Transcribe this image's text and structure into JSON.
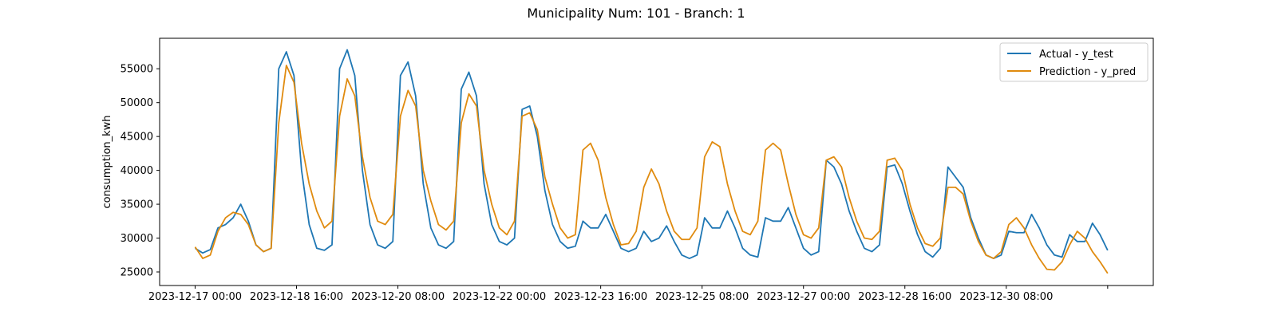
{
  "chart_data": {
    "type": "line",
    "title": "Municipality Num: 101 - Branch: 1",
    "xlabel": "",
    "ylabel": "consumption_kwh",
    "x_type": "datetime",
    "xlim": [
      "2023-12-16 10:00",
      "2024-01-01 18:00"
    ],
    "ylim": [
      23000,
      59500
    ],
    "yticks": [
      25000,
      30000,
      35000,
      40000,
      45000,
      50000,
      55000
    ],
    "xticks": [
      "2023-12-17 00:00",
      "2023-12-18 16:00",
      "2023-12-20 08:00",
      "2023-12-22 00:00",
      "2023-12-23 16:00",
      "2023-12-25 08:00",
      "2023-12-27 00:00",
      "2023-12-28 16:00",
      "2023-12-30 08:00",
      "2024-01-01 00:00"
    ],
    "xtick_labels": [
      "2023-12-17 00:00",
      "2023-12-18 16:00",
      "2023-12-20 08:00",
      "2023-12-22 00:00",
      "2023-12-23 16:00",
      "2023-12-25 08:00",
      "2023-12-27 00:00",
      "2023-12-28 16:00",
      "2023-12-30 08:00",
      ""
    ],
    "grid": false,
    "legend_position": "top-right",
    "series": [
      {
        "name": "Actual - y_test",
        "color": "#1f77b4",
        "points": [
          [
            "2023-12-17 00:00",
            28500
          ],
          [
            "2023-12-17 03:00",
            27800
          ],
          [
            "2023-12-17 06:00",
            28300
          ],
          [
            "2023-12-17 09:00",
            31500
          ],
          [
            "2023-12-17 12:00",
            32000
          ],
          [
            "2023-12-17 15:00",
            33000
          ],
          [
            "2023-12-17 18:00",
            35000
          ],
          [
            "2023-12-17 21:00",
            32500
          ],
          [
            "2023-12-18 00:00",
            29000
          ],
          [
            "2023-12-18 03:00",
            28000
          ],
          [
            "2023-12-18 06:00",
            28500
          ],
          [
            "2023-12-18 09:00",
            55000
          ],
          [
            "2023-12-18 12:00",
            57500
          ],
          [
            "2023-12-18 15:00",
            54000
          ],
          [
            "2023-12-18 18:00",
            40000
          ],
          [
            "2023-12-18 21:00",
            32000
          ],
          [
            "2023-12-19 00:00",
            28500
          ],
          [
            "2023-12-19 03:00",
            28200
          ],
          [
            "2023-12-19 06:00",
            29000
          ],
          [
            "2023-12-19 09:00",
            55000
          ],
          [
            "2023-12-19 12:00",
            57800
          ],
          [
            "2023-12-19 15:00",
            54000
          ],
          [
            "2023-12-19 18:00",
            40000
          ],
          [
            "2023-12-19 21:00",
            32000
          ],
          [
            "2023-12-20 00:00",
            29000
          ],
          [
            "2023-12-20 03:00",
            28500
          ],
          [
            "2023-12-20 06:00",
            29500
          ],
          [
            "2023-12-20 09:00",
            54000
          ],
          [
            "2023-12-20 12:00",
            56000
          ],
          [
            "2023-12-20 15:00",
            51000
          ],
          [
            "2023-12-20 18:00",
            38000
          ],
          [
            "2023-12-20 21:00",
            31500
          ],
          [
            "2023-12-21 00:00",
            29000
          ],
          [
            "2023-12-21 03:00",
            28500
          ],
          [
            "2023-12-21 06:00",
            29500
          ],
          [
            "2023-12-21 09:00",
            52000
          ],
          [
            "2023-12-21 12:00",
            54500
          ],
          [
            "2023-12-21 15:00",
            51000
          ],
          [
            "2023-12-21 18:00",
            38000
          ],
          [
            "2023-12-21 21:00",
            32000
          ],
          [
            "2023-12-22 00:00",
            29500
          ],
          [
            "2023-12-22 03:00",
            29000
          ],
          [
            "2023-12-22 06:00",
            30000
          ],
          [
            "2023-12-22 09:00",
            49000
          ],
          [
            "2023-12-22 12:00",
            49500
          ],
          [
            "2023-12-22 15:00",
            45000
          ],
          [
            "2023-12-22 18:00",
            37000
          ],
          [
            "2023-12-22 21:00",
            32000
          ],
          [
            "2023-12-23 00:00",
            29500
          ],
          [
            "2023-12-23 03:00",
            28500
          ],
          [
            "2023-12-23 06:00",
            28800
          ],
          [
            "2023-12-23 09:00",
            32500
          ],
          [
            "2023-12-23 12:00",
            31500
          ],
          [
            "2023-12-23 15:00",
            31500
          ],
          [
            "2023-12-23 18:00",
            33500
          ],
          [
            "2023-12-23 21:00",
            31000
          ],
          [
            "2023-12-24 00:00",
            28500
          ],
          [
            "2023-12-24 03:00",
            28000
          ],
          [
            "2023-12-24 06:00",
            28500
          ],
          [
            "2023-12-24 09:00",
            31000
          ],
          [
            "2023-12-24 12:00",
            29500
          ],
          [
            "2023-12-24 15:00",
            30000
          ],
          [
            "2023-12-24 18:00",
            31800
          ],
          [
            "2023-12-24 21:00",
            29500
          ],
          [
            "2023-12-25 00:00",
            27500
          ],
          [
            "2023-12-25 03:00",
            27000
          ],
          [
            "2023-12-25 06:00",
            27500
          ],
          [
            "2023-12-25 09:00",
            33000
          ],
          [
            "2023-12-25 12:00",
            31500
          ],
          [
            "2023-12-25 15:00",
            31500
          ],
          [
            "2023-12-25 18:00",
            34000
          ],
          [
            "2023-12-25 21:00",
            31500
          ],
          [
            "2023-12-26 00:00",
            28500
          ],
          [
            "2023-12-26 03:00",
            27500
          ],
          [
            "2023-12-26 06:00",
            27200
          ],
          [
            "2023-12-26 09:00",
            33000
          ],
          [
            "2023-12-26 12:00",
            32500
          ],
          [
            "2023-12-26 15:00",
            32500
          ],
          [
            "2023-12-26 18:00",
            34500
          ],
          [
            "2023-12-26 21:00",
            31500
          ],
          [
            "2023-12-27 00:00",
            28500
          ],
          [
            "2023-12-27 03:00",
            27500
          ],
          [
            "2023-12-27 06:00",
            28000
          ],
          [
            "2023-12-27 09:00",
            41500
          ],
          [
            "2023-12-27 12:00",
            40500
          ],
          [
            "2023-12-27 15:00",
            38000
          ],
          [
            "2023-12-27 18:00",
            34000
          ],
          [
            "2023-12-27 21:00",
            31000
          ],
          [
            "2023-12-28 00:00",
            28500
          ],
          [
            "2023-12-28 03:00",
            28000
          ],
          [
            "2023-12-28 06:00",
            29000
          ],
          [
            "2023-12-28 09:00",
            40500
          ],
          [
            "2023-12-28 12:00",
            40800
          ],
          [
            "2023-12-28 15:00",
            38000
          ],
          [
            "2023-12-28 18:00",
            34000
          ],
          [
            "2023-12-28 21:00",
            30500
          ],
          [
            "2023-12-29 00:00",
            28000
          ],
          [
            "2023-12-29 03:00",
            27200
          ],
          [
            "2023-12-29 06:00",
            28500
          ],
          [
            "2023-12-29 09:00",
            40500
          ],
          [
            "2023-12-29 12:00",
            39000
          ],
          [
            "2023-12-29 15:00",
            37500
          ],
          [
            "2023-12-29 18:00",
            33000
          ],
          [
            "2023-12-29 21:00",
            30000
          ],
          [
            "2023-12-30 00:00",
            27500
          ],
          [
            "2023-12-30 03:00",
            27000
          ],
          [
            "2023-12-30 06:00",
            27500
          ],
          [
            "2023-12-30 09:00",
            31000
          ],
          [
            "2023-12-30 12:00",
            30800
          ],
          [
            "2023-12-30 15:00",
            30800
          ],
          [
            "2023-12-30 18:00",
            33500
          ],
          [
            "2023-12-30 21:00",
            31500
          ],
          [
            "2023-12-31 00:00",
            29000
          ],
          [
            "2023-12-31 03:00",
            27500
          ],
          [
            "2023-12-31 06:00",
            27200
          ],
          [
            "2023-12-31 09:00",
            30500
          ],
          [
            "2023-12-31 12:00",
            29500
          ],
          [
            "2023-12-31 15:00",
            29500
          ],
          [
            "2023-12-31 18:00",
            32200
          ],
          [
            "2023-12-31 21:00",
            30500
          ],
          [
            "2024-01-01 00:00",
            28200
          ]
        ]
      },
      {
        "name": "Prediction - y_pred",
        "color": "#e08b0f",
        "points": [
          [
            "2023-12-17 00:00",
            28700
          ],
          [
            "2023-12-17 03:00",
            27000
          ],
          [
            "2023-12-17 06:00",
            27500
          ],
          [
            "2023-12-17 09:00",
            31000
          ],
          [
            "2023-12-17 12:00",
            33000
          ],
          [
            "2023-12-17 15:00",
            33800
          ],
          [
            "2023-12-17 18:00",
            33500
          ],
          [
            "2023-12-17 21:00",
            32000
          ],
          [
            "2023-12-18 00:00",
            29000
          ],
          [
            "2023-12-18 03:00",
            28000
          ],
          [
            "2023-12-18 06:00",
            28500
          ],
          [
            "2023-12-18 09:00",
            47000
          ],
          [
            "2023-12-18 12:00",
            55500
          ],
          [
            "2023-12-18 15:00",
            53000
          ],
          [
            "2023-12-18 18:00",
            44000
          ],
          [
            "2023-12-18 21:00",
            38000
          ],
          [
            "2023-12-19 00:00",
            34000
          ],
          [
            "2023-12-19 03:00",
            31500
          ],
          [
            "2023-12-19 06:00",
            32500
          ],
          [
            "2023-12-19 09:00",
            48000
          ],
          [
            "2023-12-19 12:00",
            53500
          ],
          [
            "2023-12-19 15:00",
            51000
          ],
          [
            "2023-12-19 18:00",
            42000
          ],
          [
            "2023-12-19 21:00",
            36000
          ],
          [
            "2023-12-20 00:00",
            32500
          ],
          [
            "2023-12-20 03:00",
            32000
          ],
          [
            "2023-12-20 06:00",
            33500
          ],
          [
            "2023-12-20 09:00",
            48000
          ],
          [
            "2023-12-20 12:00",
            51800
          ],
          [
            "2023-12-20 15:00",
            49500
          ],
          [
            "2023-12-20 18:00",
            40000
          ],
          [
            "2023-12-20 21:00",
            35500
          ],
          [
            "2023-12-21 00:00",
            32000
          ],
          [
            "2023-12-21 03:00",
            31200
          ],
          [
            "2023-12-21 06:00",
            32500
          ],
          [
            "2023-12-21 09:00",
            47000
          ],
          [
            "2023-12-21 12:00",
            51300
          ],
          [
            "2023-12-21 15:00",
            49500
          ],
          [
            "2023-12-21 18:00",
            40000
          ],
          [
            "2023-12-21 21:00",
            35000
          ],
          [
            "2023-12-22 00:00",
            31500
          ],
          [
            "2023-12-22 03:00",
            30500
          ],
          [
            "2023-12-22 06:00",
            32500
          ],
          [
            "2023-12-22 09:00",
            48000
          ],
          [
            "2023-12-22 12:00",
            48500
          ],
          [
            "2023-12-22 15:00",
            46000
          ],
          [
            "2023-12-22 18:00",
            39000
          ],
          [
            "2023-12-22 21:00",
            35000
          ],
          [
            "2023-12-23 00:00",
            31500
          ],
          [
            "2023-12-23 03:00",
            30000
          ],
          [
            "2023-12-23 06:00",
            30500
          ],
          [
            "2023-12-23 09:00",
            43000
          ],
          [
            "2023-12-23 12:00",
            44000
          ],
          [
            "2023-12-23 15:00",
            41500
          ],
          [
            "2023-12-23 18:00",
            36000
          ],
          [
            "2023-12-23 21:00",
            32000
          ],
          [
            "2023-12-24 00:00",
            29000
          ],
          [
            "2023-12-24 03:00",
            29200
          ],
          [
            "2023-12-24 06:00",
            31000
          ],
          [
            "2023-12-24 09:00",
            37500
          ],
          [
            "2023-12-24 12:00",
            40200
          ],
          [
            "2023-12-24 15:00",
            38000
          ],
          [
            "2023-12-24 18:00",
            34000
          ],
          [
            "2023-12-24 21:00",
            31000
          ],
          [
            "2023-12-25 00:00",
            29800
          ],
          [
            "2023-12-25 03:00",
            29800
          ],
          [
            "2023-12-25 06:00",
            31500
          ],
          [
            "2023-12-25 09:00",
            42000
          ],
          [
            "2023-12-25 12:00",
            44200
          ],
          [
            "2023-12-25 15:00",
            43500
          ],
          [
            "2023-12-25 18:00",
            38000
          ],
          [
            "2023-12-25 21:00",
            34000
          ],
          [
            "2023-12-26 00:00",
            31000
          ],
          [
            "2023-12-26 03:00",
            30500
          ],
          [
            "2023-12-26 06:00",
            32500
          ],
          [
            "2023-12-26 09:00",
            43000
          ],
          [
            "2023-12-26 12:00",
            44000
          ],
          [
            "2023-12-26 15:00",
            43000
          ],
          [
            "2023-12-26 18:00",
            38000
          ],
          [
            "2023-12-26 21:00",
            33500
          ],
          [
            "2023-12-27 00:00",
            30500
          ],
          [
            "2023-12-27 03:00",
            30000
          ],
          [
            "2023-12-27 06:00",
            31500
          ],
          [
            "2023-12-27 09:00",
            41500
          ],
          [
            "2023-12-27 12:00",
            42000
          ],
          [
            "2023-12-27 15:00",
            40500
          ],
          [
            "2023-12-27 18:00",
            36000
          ],
          [
            "2023-12-27 21:00",
            32500
          ],
          [
            "2023-12-28 00:00",
            30000
          ],
          [
            "2023-12-28 03:00",
            29800
          ],
          [
            "2023-12-28 06:00",
            31000
          ],
          [
            "2023-12-28 09:00",
            41500
          ],
          [
            "2023-12-28 12:00",
            41800
          ],
          [
            "2023-12-28 15:00",
            40000
          ],
          [
            "2023-12-28 18:00",
            35000
          ],
          [
            "2023-12-28 21:00",
            31500
          ],
          [
            "2023-12-29 00:00",
            29200
          ],
          [
            "2023-12-29 03:00",
            28800
          ],
          [
            "2023-12-29 06:00",
            30000
          ],
          [
            "2023-12-29 09:00",
            37500
          ],
          [
            "2023-12-29 12:00",
            37500
          ],
          [
            "2023-12-29 15:00",
            36500
          ],
          [
            "2023-12-29 18:00",
            32500
          ],
          [
            "2023-12-29 21:00",
            29500
          ],
          [
            "2023-12-30 00:00",
            27500
          ],
          [
            "2023-12-30 03:00",
            27000
          ],
          [
            "2023-12-30 06:00",
            28000
          ],
          [
            "2023-12-30 09:00",
            32000
          ],
          [
            "2023-12-30 12:00",
            33000
          ],
          [
            "2023-12-30 15:00",
            31500
          ],
          [
            "2023-12-30 18:00",
            29000
          ],
          [
            "2023-12-30 21:00",
            27000
          ],
          [
            "2023-12-31 00:00",
            25400
          ],
          [
            "2023-12-31 03:00",
            25300
          ],
          [
            "2023-12-31 06:00",
            26500
          ],
          [
            "2023-12-31 09:00",
            29000
          ],
          [
            "2023-12-31 12:00",
            31000
          ],
          [
            "2023-12-31 15:00",
            30000
          ],
          [
            "2023-12-31 18:00",
            28000
          ],
          [
            "2023-12-31 21:00",
            26500
          ],
          [
            "2024-01-01 00:00",
            24800
          ]
        ]
      }
    ]
  }
}
